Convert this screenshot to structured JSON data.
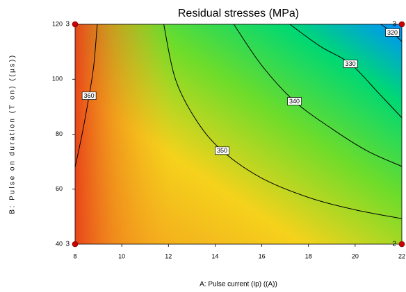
{
  "chart_data": {
    "type": "contour",
    "title": "Residual stresses (MPa)",
    "x_label": "A: Pulse current (Ip) ((A))",
    "y_label": "B: Pulse on duration (T on) ((µs))",
    "xlim": [
      8,
      22
    ],
    "xticks": [
      8,
      10,
      12,
      14,
      16,
      18,
      20,
      22
    ],
    "ylim": [
      40,
      120
    ],
    "yticks": [
      40,
      60,
      80,
      100,
      120
    ],
    "line_color": "#000000",
    "contours": [
      {
        "level": 360,
        "x": [
          8,
          8.3,
          8.6,
          8.8,
          8.95
        ],
        "y": [
          68,
          80,
          94,
          105,
          120
        ]
      },
      {
        "level": 350,
        "x": [
          11.8,
          12.3,
          13.2,
          14.3,
          16,
          18,
          20,
          22
        ],
        "y": [
          120,
          100,
          85,
          74,
          64,
          57,
          52.5,
          49.3
        ]
      },
      {
        "level": 340,
        "x": [
          14.8,
          16,
          17.4,
          19,
          20.5,
          22
        ],
        "y": [
          120,
          105,
          92,
          82,
          74,
          68.3
        ]
      },
      {
        "level": 330,
        "x": [
          17.2,
          18.5,
          19.8,
          21,
          22
        ],
        "y": [
          120,
          112,
          105.6,
          95,
          86
        ]
      },
      {
        "level": 320,
        "x": [
          21.1,
          21.6,
          22
        ],
        "y": [
          120,
          117,
          113.7
        ]
      }
    ],
    "design_points": {
      "x": [
        8,
        22,
        8,
        22
      ],
      "y": [
        120,
        120,
        40,
        40
      ],
      "labels": [
        "3",
        "3",
        "3",
        "2"
      ],
      "color": "#cc0000"
    }
  }
}
